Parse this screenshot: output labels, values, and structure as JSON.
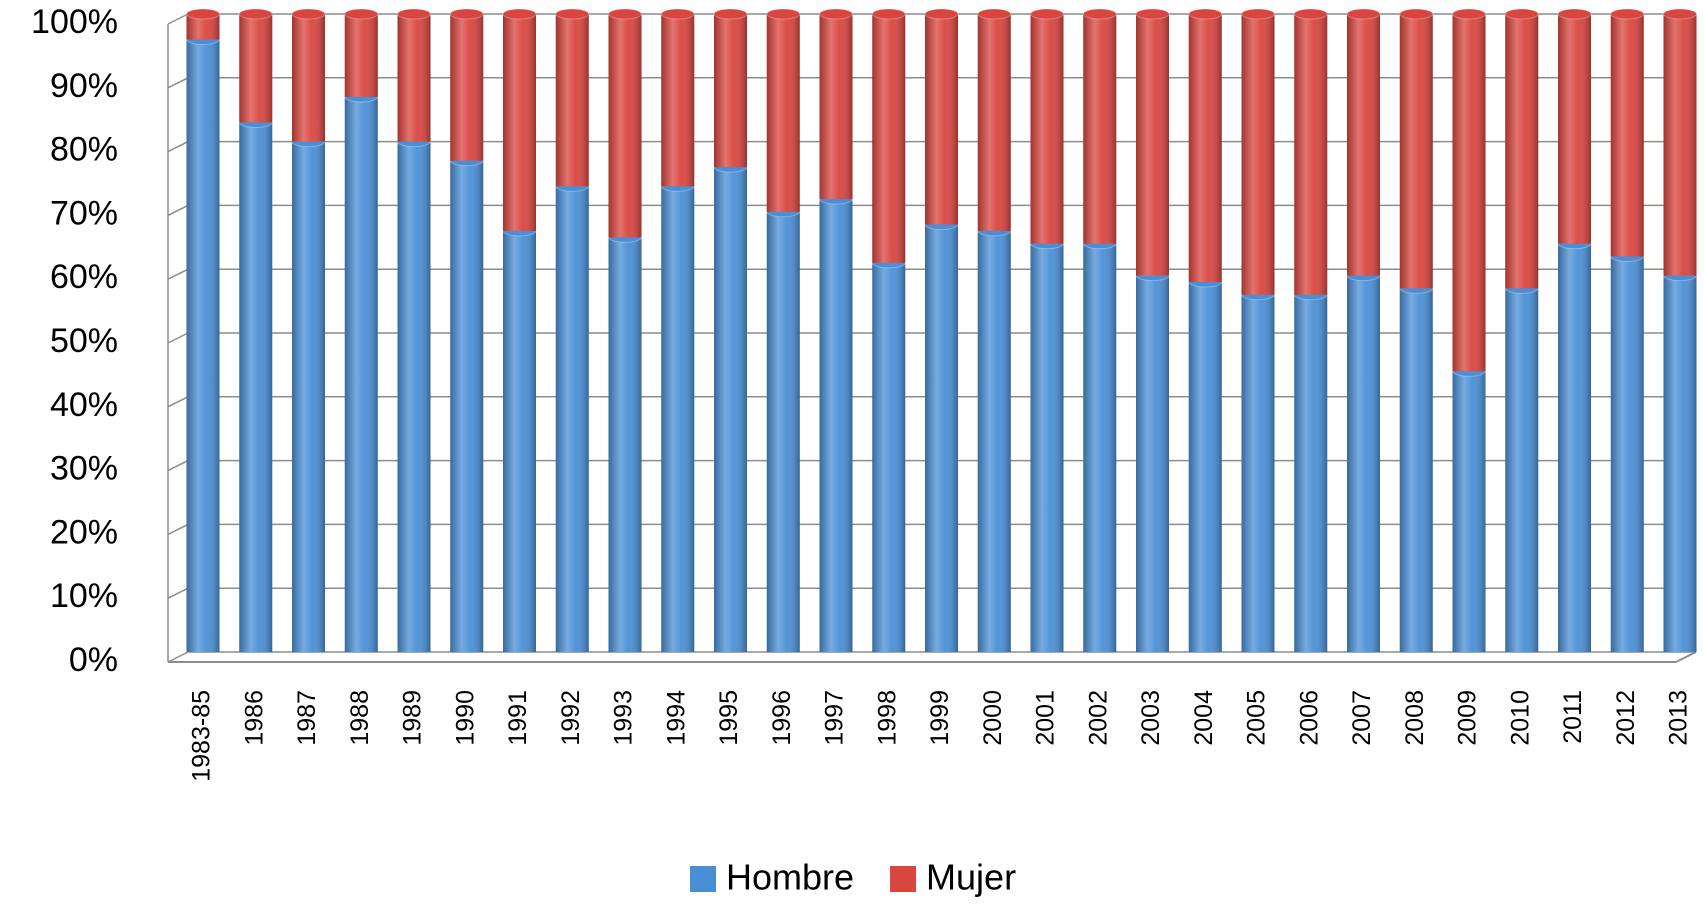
{
  "chart_data": {
    "type": "bar",
    "stacked": true,
    "categories": [
      "1983-85",
      "1986",
      "1987",
      "1988",
      "1989",
      "1990",
      "1991",
      "1992",
      "1993",
      "1994",
      "1995",
      "1996",
      "1997",
      "1998",
      "1999",
      "2000",
      "2001",
      "2002",
      "2003",
      "2004",
      "2005",
      "2006",
      "2007",
      "2008",
      "2009",
      "2010",
      "2011",
      "2012",
      "2013"
    ],
    "series": [
      {
        "name": "Hombre",
        "color": "#4a8fd6",
        "values": [
          96,
          83,
          80,
          87,
          80,
          77,
          66,
          73,
          65,
          73,
          76,
          69,
          71,
          61,
          67,
          66,
          64,
          64,
          59,
          58,
          56,
          56,
          59,
          57,
          44,
          57,
          64,
          62,
          59
        ]
      },
      {
        "name": "Mujer",
        "color": "#d9453f",
        "values": [
          4,
          17,
          20,
          13,
          20,
          23,
          34,
          27,
          35,
          27,
          24,
          31,
          29,
          39,
          33,
          34,
          36,
          36,
          41,
          42,
          44,
          44,
          41,
          43,
          56,
          43,
          36,
          38,
          41
        ]
      }
    ],
    "ylim": [
      0,
      100
    ],
    "yticks": [
      {
        "value": 0,
        "label": "0%"
      },
      {
        "value": 10,
        "label": "10%"
      },
      {
        "value": 20,
        "label": "20%"
      },
      {
        "value": 30,
        "label": "30%"
      },
      {
        "value": 40,
        "label": "40%"
      },
      {
        "value": 50,
        "label": "50%"
      },
      {
        "value": 60,
        "label": "60%"
      },
      {
        "value": 70,
        "label": "70%"
      },
      {
        "value": 80,
        "label": "80%"
      },
      {
        "value": 90,
        "label": "90%"
      },
      {
        "value": 100,
        "label": "100%"
      }
    ],
    "grid": true,
    "legend": "bottom"
  }
}
